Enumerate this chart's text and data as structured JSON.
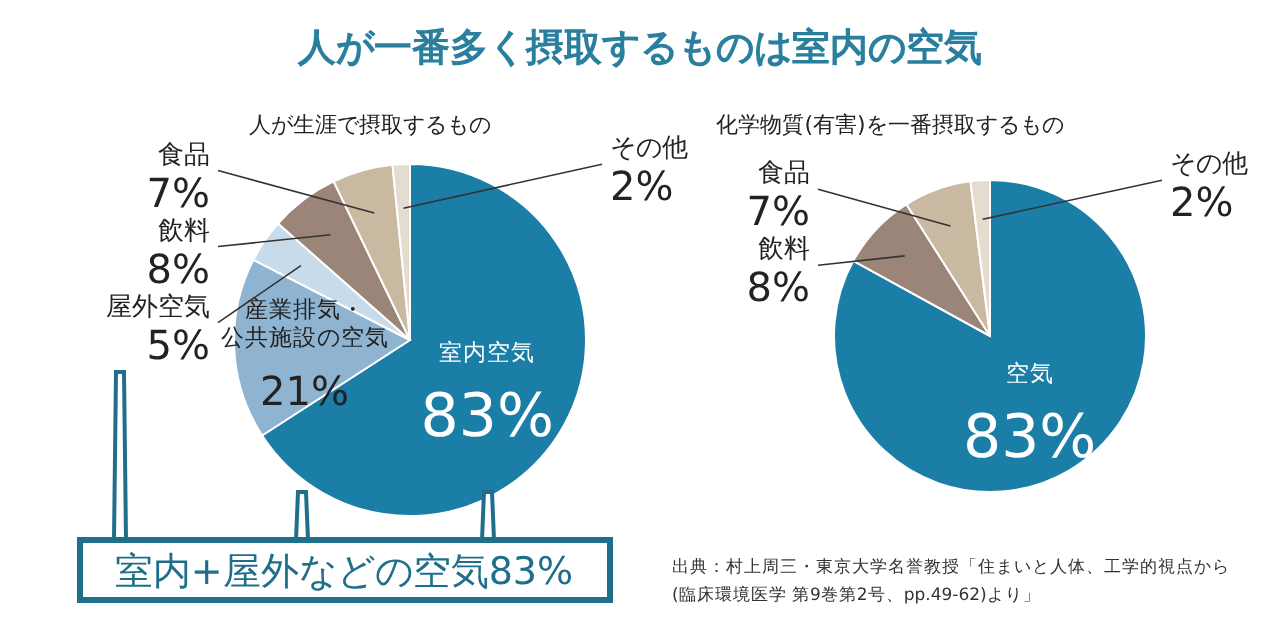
{
  "chart_data": [
    {
      "type": "pie",
      "title": "人が一番多く摂取するものは室内の空気",
      "subtitle": "人が生涯で摂取するもの",
      "categories": [
        "室内空気",
        "産業排気・公共施設の空気",
        "屋外空気",
        "飲料",
        "食品",
        "その他"
      ],
      "values": [
        83,
        21,
        5,
        8,
        7,
        2
      ],
      "value_labels": [
        "83%",
        "21%",
        "5%",
        "8%",
        "7%",
        "2%"
      ],
      "colors": [
        "#1a7ea6",
        "#8fb4d2",
        "#c8dbeb",
        "#9b8578",
        "#c9b9a0",
        "#e4dccf"
      ],
      "annotations": [
        "室内+屋外などの空気83%"
      ]
    },
    {
      "type": "pie",
      "subtitle": "化学物質(有害)を一番摂取するもの",
      "categories": [
        "空気",
        "飲料",
        "食品",
        "その他"
      ],
      "values": [
        83,
        8,
        7,
        2
      ],
      "value_labels": [
        "83%",
        "8%",
        "7%",
        "2%"
      ],
      "colors": [
        "#1a7ea6",
        "#9b8578",
        "#c9b9a0",
        "#e4dccf"
      ],
      "annotations": [
        "出典：村上周三・東京大学名誉教授「住まいと人体、工学的視点から",
        "(臨床環境医学 第9巻第2号、pp.49-62)より」"
      ]
    }
  ]
}
